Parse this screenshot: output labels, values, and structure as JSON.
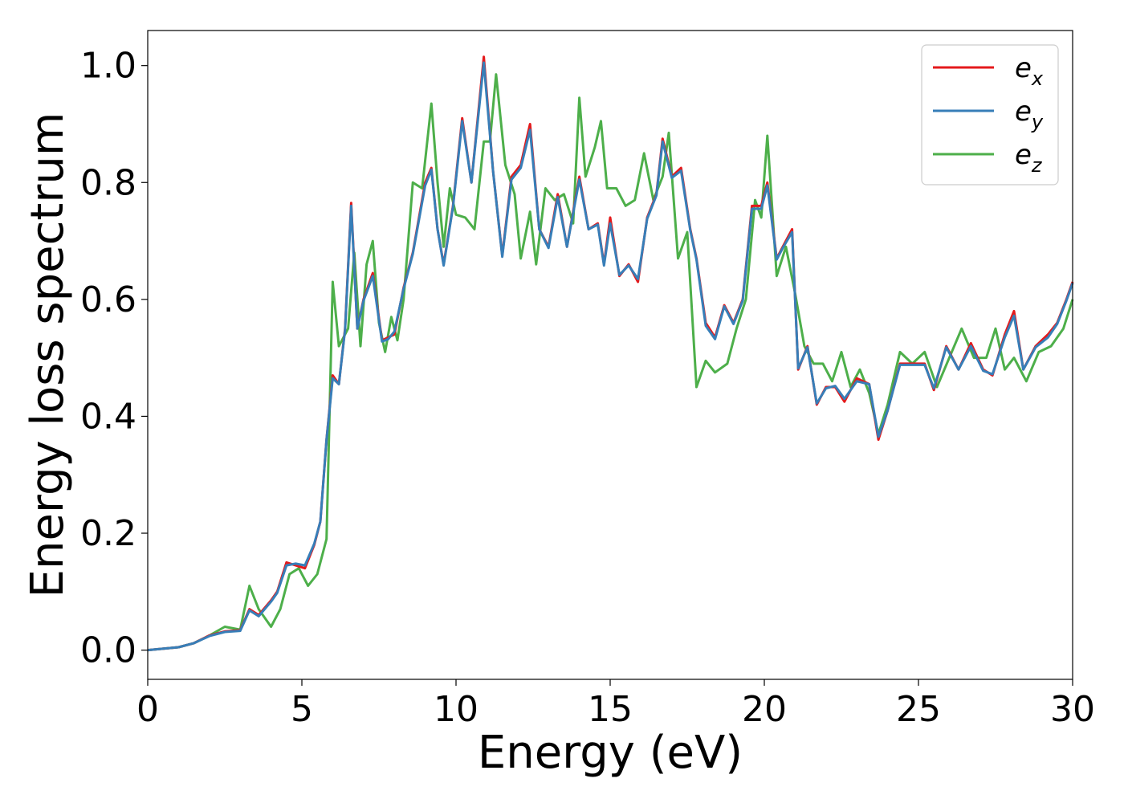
{
  "chart_data": {
    "type": "line",
    "xlabel": "Energy (eV)",
    "ylabel": "Energy loss spectrum",
    "xlim": [
      0,
      30
    ],
    "ylim": [
      -0.05,
      1.06
    ],
    "xticks": [
      0,
      5,
      10,
      15,
      20,
      25,
      30
    ],
    "xtick_labels": [
      "0",
      "5",
      "10",
      "15",
      "20",
      "25",
      "30"
    ],
    "yticks": [
      0.0,
      0.2,
      0.4,
      0.6,
      0.8,
      1.0
    ],
    "ytick_labels": [
      "0.0",
      "0.2",
      "0.4",
      "0.6",
      "0.8",
      "1.0"
    ],
    "grid": false,
    "legend_position": "top-right",
    "series": [
      {
        "name": "e_x",
        "label_base": "e",
        "label_sub": "x",
        "color": "#e41a1c",
        "x": [
          0,
          1,
          1.5,
          2,
          2.5,
          3,
          3.3,
          3.6,
          4,
          4.2,
          4.5,
          4.8,
          5.1,
          5.4,
          5.6,
          5.8,
          6.0,
          6.2,
          6.4,
          6.6,
          6.8,
          7.0,
          7.3,
          7.6,
          7.8,
          8.0,
          8.3,
          8.6,
          9.0,
          9.2,
          9.4,
          9.6,
          9.9,
          10.2,
          10.5,
          10.9,
          11.2,
          11.5,
          11.8,
          12.1,
          12.4,
          12.7,
          13.0,
          13.3,
          13.6,
          14.0,
          14.3,
          14.6,
          14.8,
          15.0,
          15.3,
          15.6,
          15.9,
          16.2,
          16.5,
          16.7,
          17.0,
          17.3,
          17.6,
          17.8,
          18.1,
          18.4,
          18.7,
          19.0,
          19.3,
          19.6,
          19.9,
          20.1,
          20.4,
          20.6,
          20.9,
          21.1,
          21.4,
          21.7,
          22.0,
          22.3,
          22.6,
          23.0,
          23.4,
          23.7,
          24.0,
          24.4,
          24.8,
          25.2,
          25.5,
          25.9,
          26.3,
          26.7,
          27.1,
          27.4,
          27.8,
          28.1,
          28.4,
          28.8,
          29.2,
          29.5,
          29.8,
          30.0
        ],
        "values": [
          0,
          0.005,
          0.012,
          0.025,
          0.032,
          0.034,
          0.07,
          0.06,
          0.085,
          0.1,
          0.15,
          0.145,
          0.14,
          0.18,
          0.22,
          0.36,
          0.47,
          0.455,
          0.55,
          0.765,
          0.55,
          0.6,
          0.645,
          0.53,
          0.535,
          0.54,
          0.62,
          0.68,
          0.8,
          0.825,
          0.72,
          0.66,
          0.76,
          0.91,
          0.8,
          1.015,
          0.82,
          0.675,
          0.81,
          0.83,
          0.9,
          0.72,
          0.69,
          0.78,
          0.69,
          0.81,
          0.72,
          0.73,
          0.66,
          0.74,
          0.64,
          0.66,
          0.63,
          0.74,
          0.78,
          0.875,
          0.81,
          0.825,
          0.72,
          0.67,
          0.56,
          0.535,
          0.59,
          0.56,
          0.6,
          0.76,
          0.76,
          0.8,
          0.67,
          0.69,
          0.72,
          0.48,
          0.52,
          0.42,
          0.45,
          0.45,
          0.425,
          0.465,
          0.455,
          0.36,
          0.41,
          0.49,
          0.49,
          0.49,
          0.445,
          0.52,
          0.48,
          0.525,
          0.48,
          0.47,
          0.54,
          0.58,
          0.48,
          0.52,
          0.54,
          0.56,
          0.6,
          0.63
        ]
      },
      {
        "name": "e_y",
        "label_base": "e",
        "label_sub": "y",
        "color": "#377eb8",
        "x": [
          0,
          1,
          1.5,
          2,
          2.5,
          3,
          3.3,
          3.6,
          4,
          4.2,
          4.5,
          4.8,
          5.1,
          5.4,
          5.6,
          5.8,
          6.0,
          6.2,
          6.4,
          6.6,
          6.8,
          7.0,
          7.3,
          7.6,
          7.8,
          8.0,
          8.3,
          8.6,
          9.0,
          9.2,
          9.4,
          9.6,
          9.9,
          10.2,
          10.5,
          10.9,
          11.2,
          11.5,
          11.8,
          12.1,
          12.4,
          12.7,
          13.0,
          13.3,
          13.6,
          14.0,
          14.3,
          14.6,
          14.8,
          15.0,
          15.3,
          15.6,
          15.9,
          16.2,
          16.5,
          16.7,
          17.0,
          17.3,
          17.6,
          17.8,
          18.1,
          18.4,
          18.7,
          19.0,
          19.3,
          19.6,
          19.9,
          20.1,
          20.4,
          20.6,
          20.9,
          21.1,
          21.4,
          21.7,
          22.0,
          22.3,
          22.6,
          23.0,
          23.4,
          23.7,
          24.0,
          24.4,
          24.8,
          25.2,
          25.5,
          25.9,
          26.3,
          26.7,
          27.1,
          27.4,
          27.8,
          28.1,
          28.4,
          28.8,
          29.2,
          29.5,
          29.8,
          30.0
        ],
        "values": [
          0,
          0.005,
          0.012,
          0.024,
          0.031,
          0.033,
          0.068,
          0.058,
          0.083,
          0.098,
          0.145,
          0.148,
          0.145,
          0.182,
          0.22,
          0.36,
          0.465,
          0.455,
          0.548,
          0.76,
          0.55,
          0.598,
          0.64,
          0.528,
          0.532,
          0.545,
          0.618,
          0.678,
          0.795,
          0.822,
          0.72,
          0.658,
          0.758,
          0.905,
          0.8,
          1.005,
          0.82,
          0.673,
          0.805,
          0.825,
          0.89,
          0.72,
          0.688,
          0.775,
          0.69,
          0.805,
          0.72,
          0.728,
          0.658,
          0.73,
          0.642,
          0.658,
          0.635,
          0.738,
          0.778,
          0.87,
          0.808,
          0.82,
          0.718,
          0.668,
          0.555,
          0.532,
          0.588,
          0.558,
          0.598,
          0.755,
          0.755,
          0.795,
          0.668,
          0.688,
          0.715,
          0.482,
          0.518,
          0.422,
          0.448,
          0.452,
          0.43,
          0.46,
          0.455,
          0.365,
          0.41,
          0.488,
          0.488,
          0.488,
          0.448,
          0.518,
          0.48,
          0.52,
          0.478,
          0.472,
          0.535,
          0.572,
          0.48,
          0.518,
          0.535,
          0.558,
          0.598,
          0.628
        ]
      },
      {
        "name": "e_z",
        "label_base": "e",
        "label_sub": "z",
        "color": "#4daf4a",
        "x": [
          0,
          1,
          1.5,
          2,
          2.5,
          3,
          3.3,
          3.6,
          4,
          4.3,
          4.6,
          4.9,
          5.2,
          5.5,
          5.8,
          6.0,
          6.2,
          6.5,
          6.7,
          6.9,
          7.1,
          7.3,
          7.5,
          7.7,
          7.9,
          8.1,
          8.3,
          8.6,
          8.9,
          9.2,
          9.4,
          9.6,
          9.8,
          10.0,
          10.3,
          10.6,
          10.9,
          11.1,
          11.3,
          11.6,
          11.9,
          12.1,
          12.4,
          12.6,
          12.9,
          13.2,
          13.5,
          13.8,
          14.0,
          14.2,
          14.5,
          14.7,
          14.9,
          15.2,
          15.5,
          15.8,
          16.1,
          16.4,
          16.7,
          16.9,
          17.2,
          17.5,
          17.8,
          18.1,
          18.4,
          18.8,
          19.1,
          19.4,
          19.7,
          19.9,
          20.1,
          20.4,
          20.7,
          21.0,
          21.3,
          21.6,
          21.9,
          22.2,
          22.5,
          22.8,
          23.1,
          23.4,
          23.7,
          24.0,
          24.4,
          24.8,
          25.2,
          25.6,
          26.0,
          26.4,
          26.8,
          27.2,
          27.5,
          27.8,
          28.1,
          28.5,
          28.9,
          29.3,
          29.7,
          30.0
        ],
        "values": [
          0,
          0.005,
          0.012,
          0.025,
          0.04,
          0.035,
          0.11,
          0.07,
          0.04,
          0.07,
          0.13,
          0.14,
          0.11,
          0.13,
          0.19,
          0.63,
          0.52,
          0.55,
          0.68,
          0.52,
          0.66,
          0.7,
          0.56,
          0.51,
          0.57,
          0.53,
          0.6,
          0.8,
          0.79,
          0.935,
          0.8,
          0.69,
          0.79,
          0.745,
          0.74,
          0.72,
          0.87,
          0.87,
          0.985,
          0.83,
          0.78,
          0.67,
          0.75,
          0.66,
          0.79,
          0.77,
          0.78,
          0.73,
          0.945,
          0.81,
          0.86,
          0.905,
          0.79,
          0.79,
          0.76,
          0.77,
          0.85,
          0.77,
          0.81,
          0.885,
          0.67,
          0.715,
          0.45,
          0.495,
          0.475,
          0.49,
          0.55,
          0.6,
          0.77,
          0.74,
          0.88,
          0.64,
          0.69,
          0.61,
          0.52,
          0.49,
          0.49,
          0.46,
          0.51,
          0.45,
          0.48,
          0.44,
          0.37,
          0.42,
          0.51,
          0.49,
          0.51,
          0.45,
          0.5,
          0.55,
          0.5,
          0.5,
          0.55,
          0.48,
          0.5,
          0.46,
          0.51,
          0.52,
          0.55,
          0.6
        ]
      }
    ]
  }
}
